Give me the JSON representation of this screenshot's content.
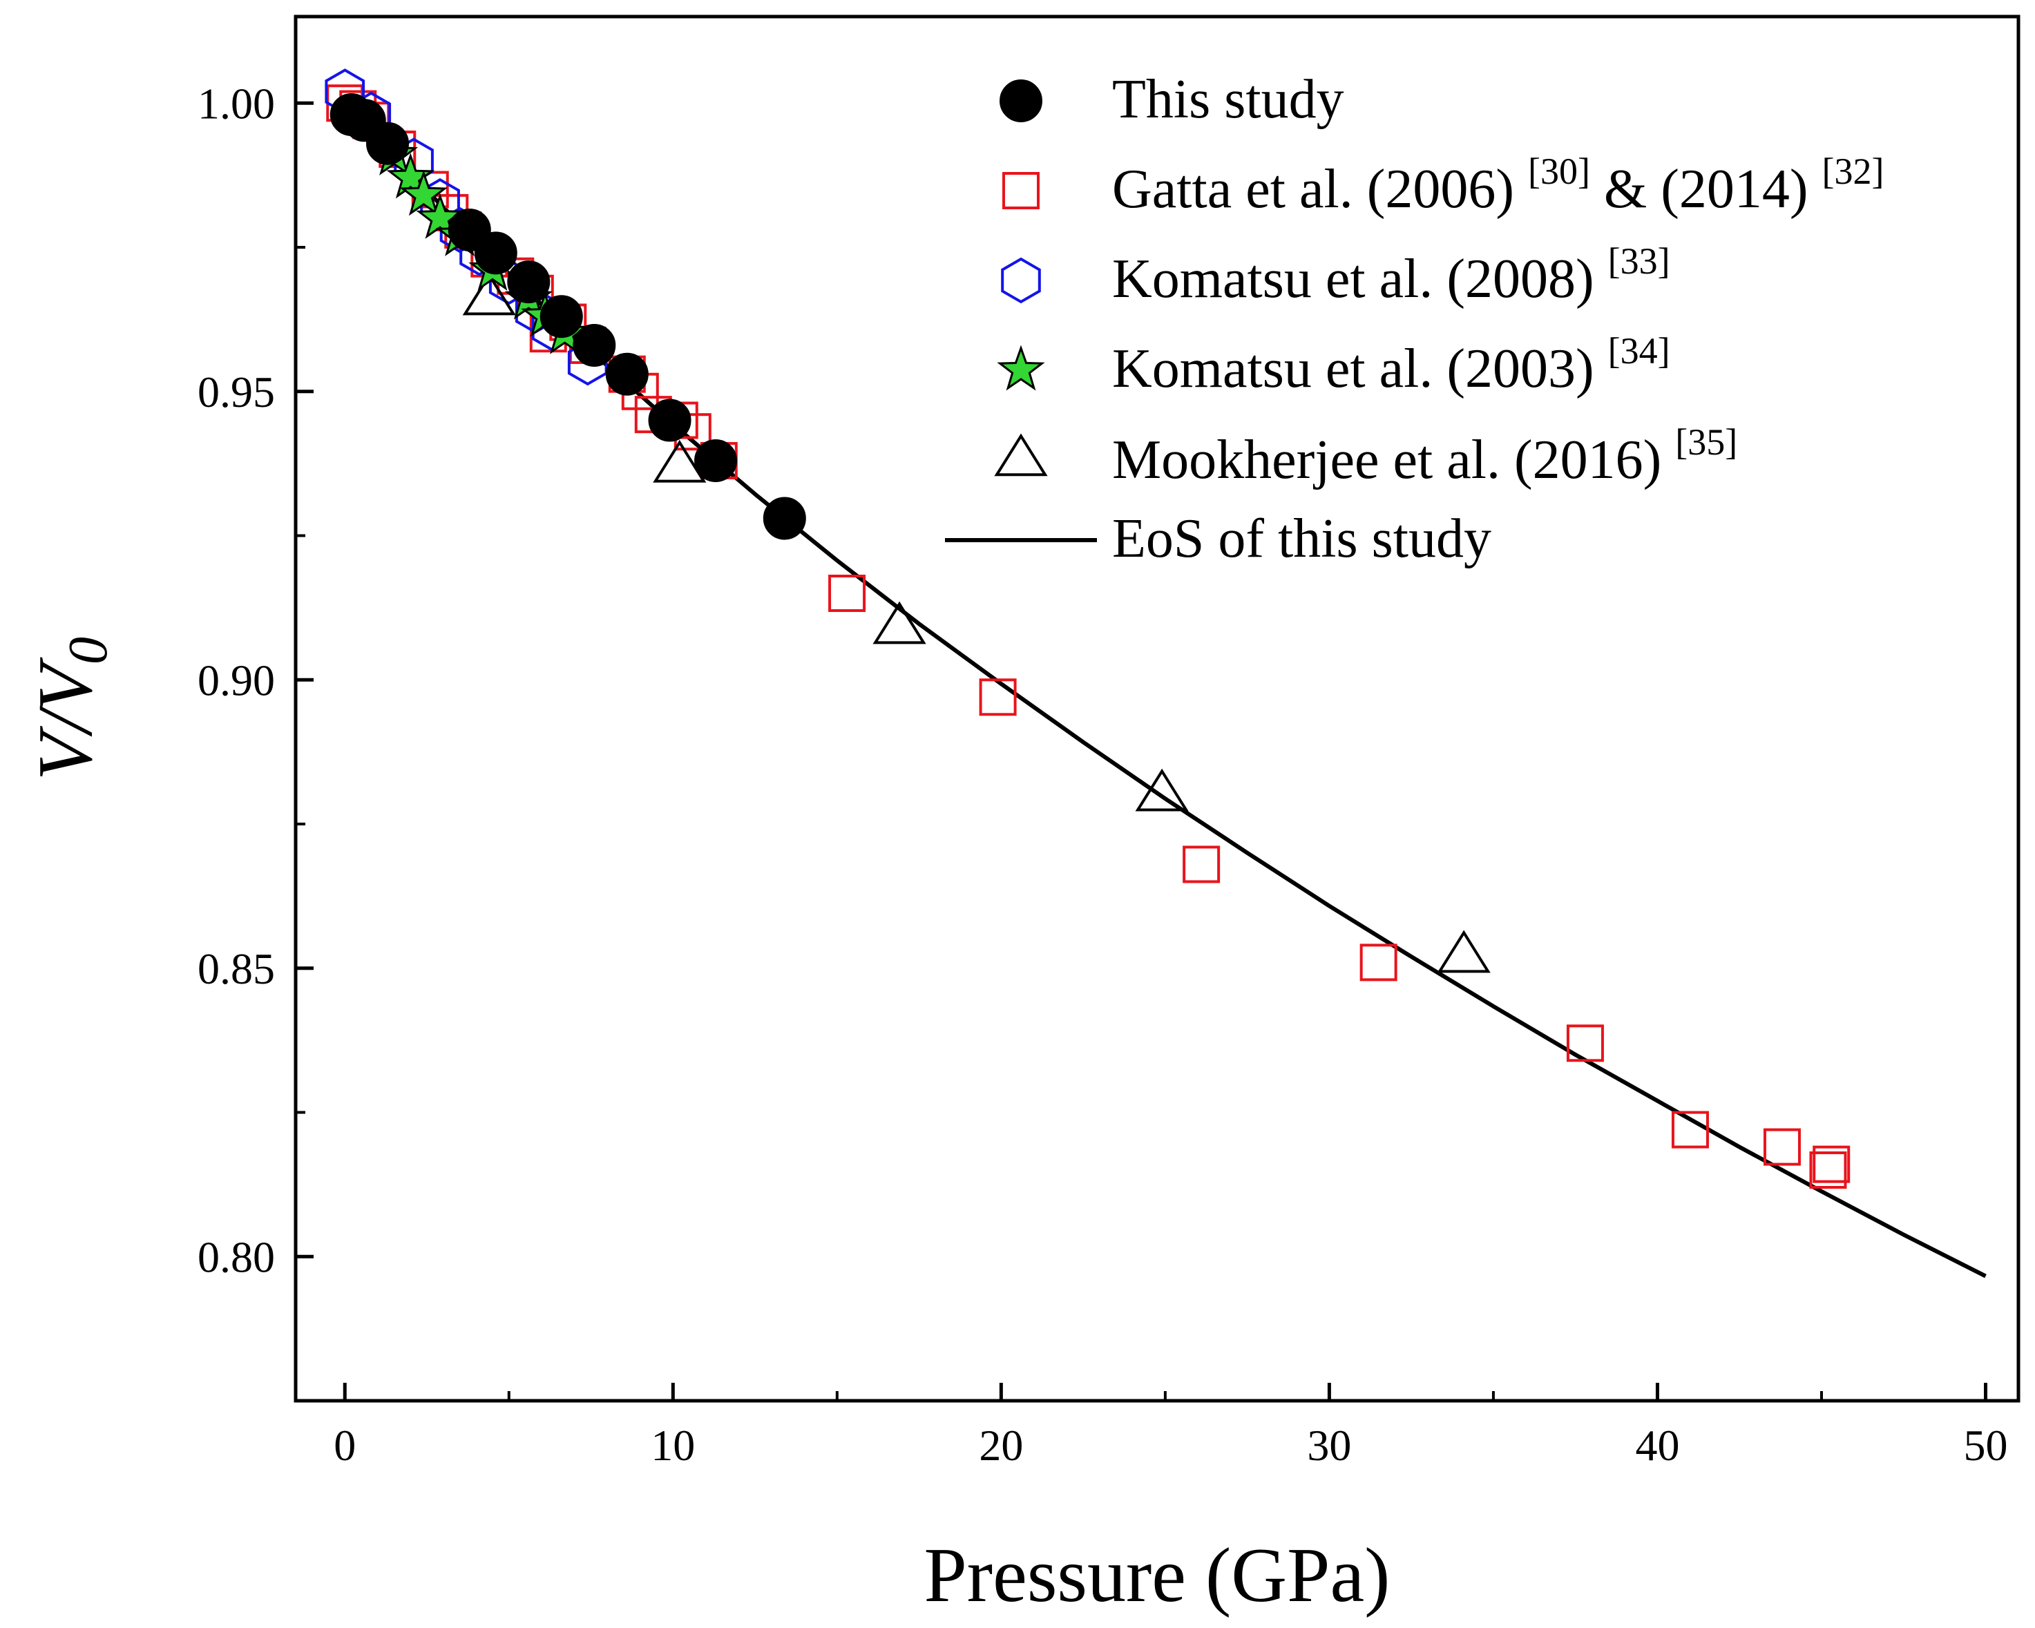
{
  "chart_data": {
    "type": "scatter",
    "xlabel": "Pressure (GPa)",
    "ylabel_main": "V/V",
    "ylabel_sub": "0",
    "xlim": [
      -1.5,
      51
    ],
    "ylim": [
      0.775,
      1.015
    ],
    "xticks": [
      0,
      10,
      20,
      30,
      40,
      50
    ],
    "yticks": [
      0.8,
      0.85,
      0.9,
      0.95,
      1.0
    ],
    "xtick_labels": [
      "0",
      "10",
      "20",
      "30",
      "40",
      "50"
    ],
    "ytick_labels": [
      "0.80",
      "0.85",
      "0.90",
      "0.95",
      "1.00"
    ],
    "series": [
      {
        "name": "This study",
        "marker": "filled-circle",
        "color": "#000000",
        "points": [
          [
            0.2,
            0.998
          ],
          [
            0.6,
            0.997
          ],
          [
            1.3,
            0.993
          ],
          [
            3.8,
            0.978
          ],
          [
            4.6,
            0.974
          ],
          [
            5.6,
            0.969
          ],
          [
            6.6,
            0.963
          ],
          [
            7.6,
            0.958
          ],
          [
            8.6,
            0.953
          ],
          [
            9.9,
            0.945
          ],
          [
            11.3,
            0.938
          ],
          [
            13.4,
            0.928
          ]
        ]
      },
      {
        "name": "Gatta et al. (2006)",
        "name_ref1": "[30]",
        "name_mid": "& (2014)",
        "name_ref2": "[32]",
        "marker": "open-square",
        "color": "#e8141c",
        "points": [
          [
            0.0,
            1.0
          ],
          [
            0.4,
            0.999
          ],
          [
            0.8,
            0.997
          ],
          [
            1.6,
            0.992
          ],
          [
            2.6,
            0.985
          ],
          [
            3.2,
            0.981
          ],
          [
            3.6,
            0.978
          ],
          [
            4.4,
            0.973
          ],
          [
            5.2,
            0.97
          ],
          [
            5.8,
            0.967
          ],
          [
            6.2,
            0.96
          ],
          [
            6.8,
            0.962
          ],
          [
            7.4,
            0.958
          ],
          [
            8.6,
            0.953
          ],
          [
            9.0,
            0.95
          ],
          [
            9.4,
            0.946
          ],
          [
            10.2,
            0.945
          ],
          [
            10.6,
            0.943
          ],
          [
            11.4,
            0.938
          ],
          [
            15.3,
            0.915
          ],
          [
            19.9,
            0.897
          ],
          [
            26.1,
            0.868
          ],
          [
            31.5,
            0.851
          ],
          [
            37.8,
            0.837
          ],
          [
            41.0,
            0.822
          ],
          [
            43.8,
            0.819
          ],
          [
            45.2,
            0.815
          ],
          [
            45.3,
            0.816
          ]
        ]
      },
      {
        "name": "Komatsu et al. (2008)",
        "name_ref": "[33]",
        "marker": "open-hexagon",
        "color": "#1414e8",
        "points": [
          [
            0.0,
            1.002
          ],
          [
            0.8,
            0.998
          ],
          [
            2.1,
            0.99
          ],
          [
            2.9,
            0.983
          ],
          [
            3.5,
            0.978
          ],
          [
            4.1,
            0.974
          ],
          [
            5.0,
            0.969
          ],
          [
            5.8,
            0.964
          ],
          [
            6.3,
            0.961
          ],
          [
            7.4,
            0.955
          ]
        ]
      },
      {
        "name": "Komatsu et al. (2003)",
        "name_ref": "[34]",
        "marker": "star",
        "color": "#33d633",
        "points": [
          [
            1.5,
            0.991
          ],
          [
            2.0,
            0.987
          ],
          [
            2.4,
            0.984
          ],
          [
            2.9,
            0.98
          ],
          [
            3.5,
            0.977
          ],
          [
            4.5,
            0.971
          ],
          [
            5.6,
            0.966
          ],
          [
            6.1,
            0.963
          ],
          [
            6.7,
            0.96
          ]
        ]
      },
      {
        "name": "Mookherjee et al. (2016)",
        "name_ref": "[35]",
        "marker": "open-triangle",
        "color": "#000000",
        "points": [
          [
            4.4,
            0.966
          ],
          [
            10.2,
            0.937
          ],
          [
            16.9,
            0.909
          ],
          [
            24.9,
            0.88
          ],
          [
            34.1,
            0.852
          ]
        ]
      }
    ],
    "fit_line": {
      "name": "EoS of this study",
      "color": "#000000",
      "points": [
        [
          0,
          1.0
        ],
        [
          2.5,
          0.9848
        ],
        [
          5,
          0.9704
        ],
        [
          7.5,
          0.957
        ],
        [
          10,
          0.9443
        ],
        [
          12.5,
          0.9322
        ],
        [
          15,
          0.9207
        ],
        [
          17.5,
          0.9097
        ],
        [
          20,
          0.8993
        ],
        [
          22.5,
          0.8892
        ],
        [
          25,
          0.8794
        ],
        [
          27.5,
          0.87
        ],
        [
          30,
          0.8608
        ],
        [
          32.5,
          0.852
        ],
        [
          35,
          0.8434
        ],
        [
          37.5,
          0.835
        ],
        [
          40,
          0.827
        ],
        [
          42.5,
          0.819
        ],
        [
          45,
          0.8113
        ],
        [
          47.5,
          0.8038
        ],
        [
          50,
          0.7966
        ]
      ]
    },
    "legend_position": "top-right"
  }
}
